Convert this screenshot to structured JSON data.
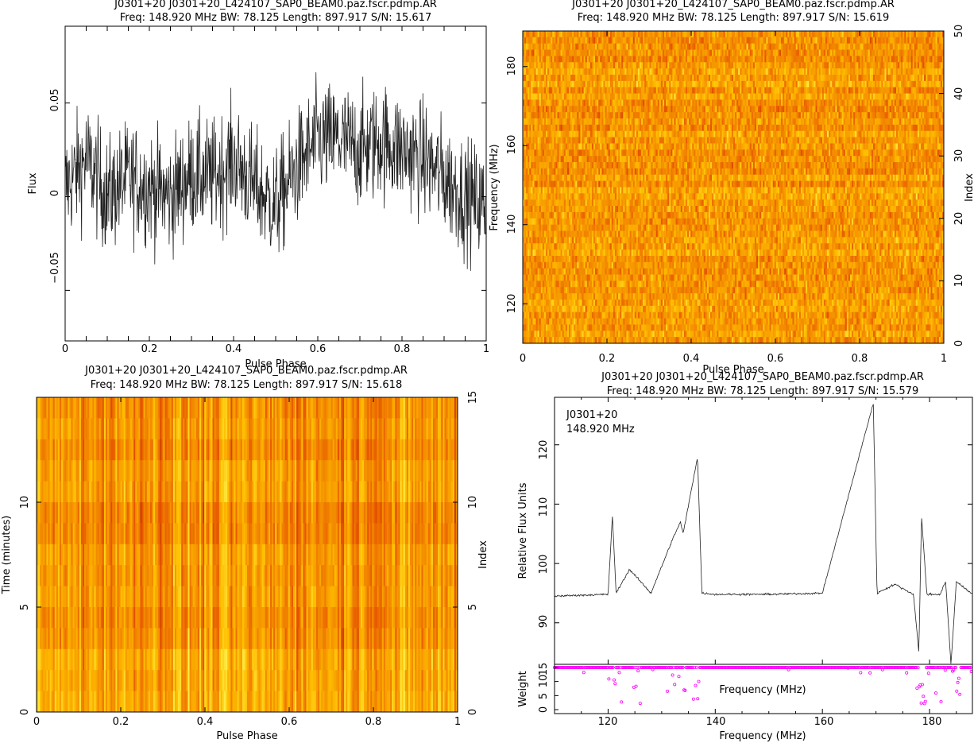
{
  "chart_data": [
    {
      "type": "line",
      "title": "J0301+20  J0301+20_L424107_SAP0_BEAM0.paz.fscr.pdmp.AR",
      "subtitle": "Freq: 148.920 MHz BW: 78.125 Length: 897.917 S/N: 15.617",
      "xlabel": "Pulse Phase",
      "ylabel": "Flux",
      "xlim": [
        0,
        1
      ],
      "ylim": [
        -0.077,
        0.091
      ],
      "xticks": [
        "0",
        "0.2",
        "0.4",
        "0.6",
        "0.8",
        "1"
      ],
      "yticks": [
        "−0.05",
        "0",
        "0.05"
      ],
      "series": [
        {
          "x": [
            0,
            0.05,
            0.1,
            0.15,
            0.2,
            0.25,
            0.3,
            0.35,
            0.4,
            0.45,
            0.5,
            0.55,
            0.6,
            0.65,
            0.7,
            0.75,
            0.8,
            0.85,
            0.9,
            0.95,
            1
          ],
          "values": [
            0.005,
            0.02,
            0.0,
            0.01,
            0.005,
            0.0,
            0.012,
            0.01,
            0.02,
            0.005,
            -0.005,
            0.015,
            0.03,
            0.03,
            0.025,
            0.03,
            0.025,
            0.02,
            0.01,
            0.0,
            -0.005
          ]
        }
      ]
    },
    {
      "type": "heatmap",
      "title": "J0301+20  J0301+20_L424107_SAP0_BEAM0.paz.fscr.pdmp.AR",
      "subtitle": "Freq: 148.920 MHz BW: 78.125 Length: 897.917 S/N: 15.619",
      "xlabel": "Pulse Phase",
      "ylabel": "Frequency (MHz)",
      "y2label": "Index",
      "xlim": [
        0,
        1
      ],
      "ylim": [
        110,
        189
      ],
      "y2lim": [
        0,
        50
      ],
      "xticks": [
        "0",
        "0.2",
        "0.4",
        "0.6",
        "0.8",
        "1"
      ],
      "yticks": [
        "120",
        "140",
        "160",
        "180"
      ],
      "y2ticks": [
        "0",
        "10",
        "20",
        "30",
        "40",
        "50"
      ]
    },
    {
      "type": "heatmap",
      "title": "J0301+20  J0301+20_L424107_SAP0_BEAM0.paz.fscr.pdmp.AR",
      "subtitle": "Freq: 148.920 MHz BW: 78.125 Length: 897.917 S/N: 15.618",
      "xlabel": "Pulse Phase",
      "ylabel": "Time (minutes)",
      "y2label": "Index",
      "xlim": [
        0,
        1
      ],
      "ylim": [
        0,
        15
      ],
      "y2lim": [
        0,
        15
      ],
      "xticks": [
        "0",
        "0.2",
        "0.4",
        "0.6",
        "0.8",
        "1"
      ],
      "yticks": [
        "0",
        "5",
        "10"
      ],
      "y2ticks": [
        "0",
        "5",
        "10",
        "15"
      ]
    },
    {
      "type": "line",
      "title": "J0301+20  J0301+20_L424107_SAP0_BEAM0.paz.fscr.pdmp.AR",
      "subtitle": "Freq: 148.920 MHz BW: 78.125 Length: 897.917 S/N: 15.579",
      "annotations": [
        "J0301+20",
        "148.920 MHz"
      ],
      "xlabel": "Frequency (MHz)",
      "ylabel": "Relative Flux Units",
      "xlim": [
        110,
        188
      ],
      "ylim": [
        83,
        128
      ],
      "xticks": [
        "120",
        "140",
        "160",
        "180"
      ],
      "yticks": [
        "90",
        "100",
        "110",
        "120"
      ],
      "series": [
        {
          "x": [
            110,
            120,
            120.8,
            121.5,
            124,
            128,
            132,
            133.5,
            134,
            136.7,
            137.5,
            140,
            150,
            160,
            169.5,
            170.2,
            173.5,
            177,
            178,
            178.5,
            179.5,
            182,
            183,
            184,
            185,
            188
          ],
          "values": [
            94.5,
            94.8,
            108,
            95,
            99,
            95,
            104,
            107,
            105,
            118,
            95,
            94.8,
            94.8,
            95,
            127,
            95,
            96.5,
            94.8,
            85,
            108,
            94.8,
            94.8,
            97,
            83,
            97,
            94.8
          ]
        }
      ],
      "weights_panel": {
        "ylabel": "Weight",
        "yticks": [
          "0",
          "5",
          "10",
          "15"
        ],
        "xlabel": "Frequency (MHz)",
        "color": "#ff00ff"
      }
    }
  ]
}
